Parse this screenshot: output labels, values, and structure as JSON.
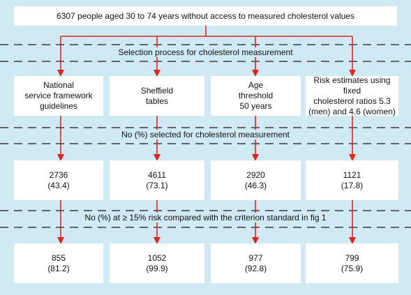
{
  "top_box": {
    "text": "6307 people aged 30 to 74 years without access to measured cholesterol values"
  },
  "stages": {
    "selection": "Selection process for cholesterol measurement",
    "selected": "No (%) selected for cholesterol measurement",
    "risk": "No (%) at ≥ 15% risk compared with the criterion standard in fig 1"
  },
  "columns": [
    {
      "method": [
        "National",
        "service framework",
        "guidelines"
      ],
      "selected": {
        "n": "2736",
        "pct": "(43.4)"
      },
      "at_risk": {
        "n": "855",
        "pct": "(81.2)"
      }
    },
    {
      "method": [
        "Sheffield",
        "tables"
      ],
      "selected": {
        "n": "4611",
        "pct": "(73.1)"
      },
      "at_risk": {
        "n": "1052",
        "pct": "(99.9)"
      }
    },
    {
      "method": [
        "Age",
        "threshold",
        "50 years"
      ],
      "selected": {
        "n": "2920",
        "pct": "(46.3)"
      },
      "at_risk": {
        "n": "977",
        "pct": "(92.8)"
      }
    },
    {
      "method": [
        "Risk estimates using fixed",
        "cholesterol ratios 5.3",
        "(men) and 4.6 (women)"
      ],
      "selected": {
        "n": "1121",
        "pct": "(17.8)"
      },
      "at_risk": {
        "n": "799",
        "pct": "(75.9)"
      }
    }
  ],
  "colors": {
    "background": "#cfe9f5",
    "arrow": "#e2231a",
    "dash": "#1a1a1a",
    "box": "#ffffff"
  }
}
